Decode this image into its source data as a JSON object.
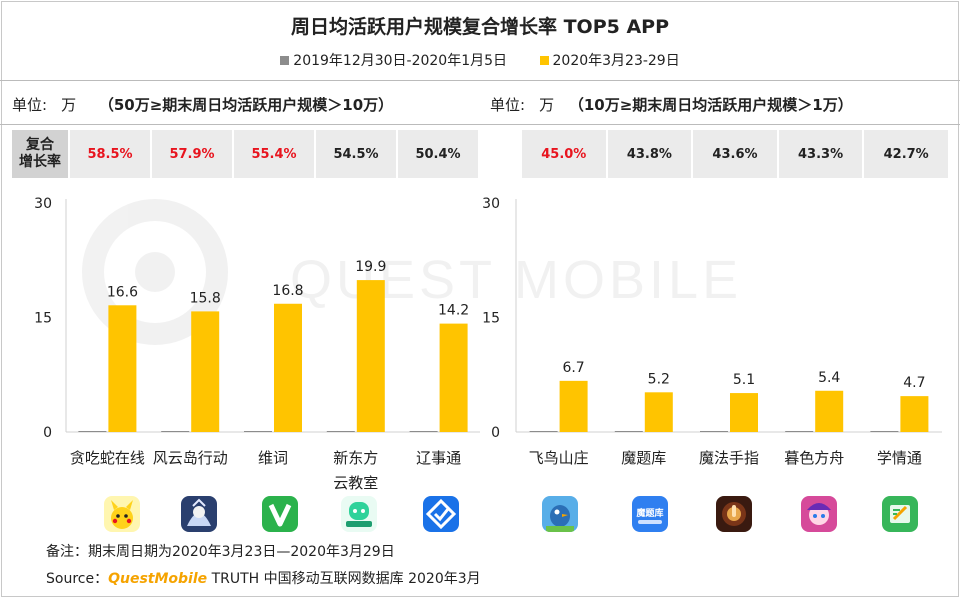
{
  "title": "周日均活跃用户规模复合增长率 TOP5 APP",
  "legend": [
    {
      "label": "2019年12月30日-2020年1月5日",
      "color": "#8c8c8c"
    },
    {
      "label": "2020年3月23-29日",
      "color": "#ffc400"
    }
  ],
  "watermark": "QUEST MOBILE",
  "left_panel": {
    "unit_label": "单位:",
    "unit_value": "万",
    "condition": "（50万≥期末周日均活跃用户规模＞10万）",
    "rate_label": [
      "复合",
      "增长率"
    ],
    "rates": [
      {
        "value": "58.5%",
        "highlight": true
      },
      {
        "value": "57.9%",
        "highlight": true
      },
      {
        "value": "55.4%",
        "highlight": true
      },
      {
        "value": "54.5%",
        "highlight": false
      },
      {
        "value": "50.4%",
        "highlight": false
      }
    ]
  },
  "right_panel": {
    "unit_label": "单位:",
    "unit_value": "万",
    "condition": "（10万≥期末周日均活跃用户规模＞1万）",
    "rates": [
      {
        "value": "45.0%",
        "highlight": true
      },
      {
        "value": "43.8%",
        "highlight": false
      },
      {
        "value": "43.6%",
        "highlight": false
      },
      {
        "value": "43.3%",
        "highlight": false
      },
      {
        "value": "42.7%",
        "highlight": false
      }
    ]
  },
  "chart_data": [
    {
      "type": "bar",
      "categories": [
        "贪吃蛇在线",
        "风云岛行动",
        "维词",
        "新东方云教室",
        "辽事通"
      ],
      "category_lines": [
        [
          "贪吃蛇在线"
        ],
        [
          "风云岛行动"
        ],
        [
          "维词"
        ],
        [
          "新东方",
          "云教室"
        ],
        [
          "辽事通"
        ]
      ],
      "series": [
        {
          "name": "2019年12月30日-2020年1月5日",
          "values": [
            0.1,
            0.1,
            0.1,
            0.1,
            0.1
          ],
          "color": "#8c8c8c"
        },
        {
          "name": "2020年3月23-29日",
          "values": [
            16.6,
            15.8,
            16.8,
            19.9,
            14.2
          ],
          "labels": [
            "16.6",
            "15.8",
            "16.8",
            "19.9",
            "14.2"
          ],
          "color": "#ffc400"
        }
      ],
      "yticks": [
        "0",
        "15",
        "30"
      ],
      "ylim": [
        0,
        30
      ]
    },
    {
      "type": "bar",
      "categories": [
        "飞鸟山庄",
        "魔题库",
        "魔法手指",
        "暮色方舟",
        "学情通"
      ],
      "category_lines": [
        [
          "飞鸟山庄"
        ],
        [
          "魔题库"
        ],
        [
          "魔法手指"
        ],
        [
          "暮色方舟"
        ],
        [
          "学情通"
        ]
      ],
      "series": [
        {
          "name": "2019年12月30日-2020年1月5日",
          "values": [
            0,
            0,
            0,
            0,
            0
          ],
          "color": "#8c8c8c"
        },
        {
          "name": "2020年3月23-29日",
          "values": [
            6.7,
            5.2,
            5.1,
            5.4,
            4.7
          ],
          "labels": [
            "6.7",
            "5.2",
            "5.1",
            "5.4",
            "4.7"
          ],
          "color": "#ffc400"
        }
      ],
      "yticks": [
        "0",
        "15",
        "30"
      ],
      "ylim": [
        0,
        30
      ]
    }
  ],
  "icons": [
    {
      "name": "pikachu-app-icon",
      "bg": "#fff6b0"
    },
    {
      "name": "fengyundao-app-icon",
      "bg": "#2a3f6e"
    },
    {
      "name": "weici-app-icon",
      "bg": "#2bb24c"
    },
    {
      "name": "xdf-classroom-app-icon",
      "bg": "#e9fbf3"
    },
    {
      "name": "liaoshitong-app-icon",
      "bg": "#1a72e8"
    },
    {
      "name": "feiniao-app-icon",
      "bg": "#58aee8"
    },
    {
      "name": "motiku-app-icon",
      "bg": "#2f7ff0",
      "text": "魔题库"
    },
    {
      "name": "magic-finger-app-icon",
      "bg": "#3a1a10"
    },
    {
      "name": "muse-ark-app-icon",
      "bg": "#d64a9a"
    },
    {
      "name": "xueqingtong-app-icon",
      "bg": "#37b65a"
    }
  ],
  "note": "备注：期末周日期为2020年3月23日—2020年3月29日",
  "source_prefix": "Source：",
  "source_brand": "QuestMobile",
  "source_suffix": " TRUTH 中国移动互联网数据库 2020年3月"
}
